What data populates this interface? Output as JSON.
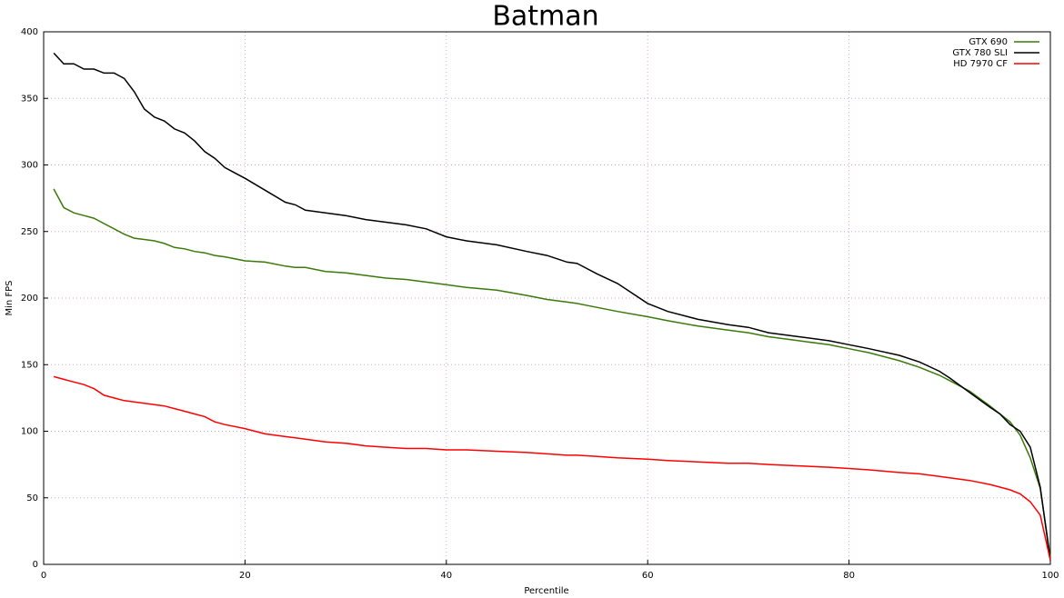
{
  "chart_data": {
    "type": "line",
    "title": "Batman",
    "x_label": "Percentile",
    "y_label": "Min FPS",
    "x": [
      1,
      2,
      3,
      4,
      5,
      6,
      7,
      8,
      9,
      10,
      11,
      12,
      13,
      14,
      15,
      16,
      17,
      18,
      20,
      22,
      24,
      25,
      26,
      28,
      30,
      32,
      34,
      36,
      38,
      40,
      42,
      45,
      48,
      50,
      52,
      53,
      55,
      57,
      60,
      62,
      65,
      68,
      70,
      72,
      75,
      78,
      80,
      82,
      85,
      87,
      89,
      90,
      92,
      94,
      95,
      96,
      97,
      98,
      99,
      100
    ],
    "series": [
      {
        "name": "GTX 690",
        "color": "#3a7a0a",
        "values": [
          282,
          268,
          264,
          262,
          260,
          256,
          252,
          248,
          245,
          244,
          243,
          241,
          238,
          237,
          235,
          234,
          232,
          231,
          228,
          227,
          224,
          223,
          223,
          220,
          219,
          217,
          215,
          214,
          212,
          210,
          208,
          206,
          202,
          199,
          197,
          196,
          193,
          190,
          186,
          183,
          179,
          176,
          174,
          171,
          168,
          165,
          162,
          159,
          153,
          148,
          142,
          138,
          130,
          119,
          113,
          107,
          97,
          80,
          57,
          5
        ]
      },
      {
        "name": "GTX 780 SLI",
        "color": "#000000",
        "values": [
          384,
          376,
          376,
          372,
          372,
          369,
          369,
          365,
          355,
          342,
          336,
          333,
          327,
          324,
          318,
          310,
          305,
          298,
          290,
          281,
          272,
          270,
          266,
          264,
          262,
          259,
          257,
          255,
          252,
          246,
          243,
          240,
          235,
          232,
          227,
          226,
          218,
          211,
          196,
          190,
          184,
          180,
          178,
          174,
          171,
          168,
          165,
          162,
          157,
          152,
          145,
          140,
          129,
          118,
          113,
          105,
          100,
          88,
          58,
          3
        ]
      },
      {
        "name": "HD 7970 CF",
        "color": "#ff0000",
        "values": [
          141,
          139,
          137,
          135,
          132,
          127,
          125,
          123,
          122,
          121,
          120,
          119,
          117,
          115,
          113,
          111,
          107,
          105,
          102,
          98,
          96,
          95,
          94,
          92,
          91,
          89,
          88,
          87,
          87,
          86,
          86,
          85,
          84,
          83,
          82,
          82,
          81,
          80,
          79,
          78,
          77,
          76,
          76,
          75,
          74,
          73,
          72,
          71,
          69,
          68,
          66,
          65,
          63,
          60,
          58,
          56,
          53,
          47,
          37,
          3
        ]
      }
    ],
    "xlim": [
      0,
      100
    ],
    "xticks": [
      0,
      20,
      40,
      60,
      80,
      100
    ],
    "ylim": [
      0,
      400
    ],
    "yticks": [
      0,
      50,
      100,
      150,
      200,
      250,
      300,
      350,
      400
    ],
    "grid": true,
    "legend": "top-right"
  }
}
